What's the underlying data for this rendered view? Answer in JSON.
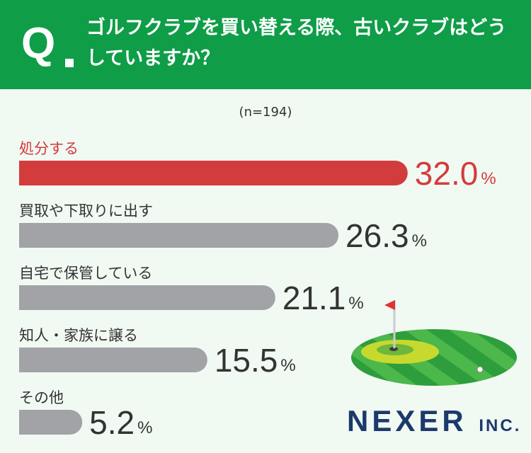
{
  "header": {
    "q_mark": "Q",
    "question": "ゴルフクラブを買い替える際、古いクラブはどうしていますか？"
  },
  "sample_label": "(n=194)",
  "chart_data": {
    "type": "bar",
    "orientation": "horizontal",
    "categories": [
      "処分する",
      "買取や下取りに出す",
      "自宅で保管している",
      "知人・家族に譲る",
      "その他"
    ],
    "values": [
      32.0,
      26.3,
      21.1,
      15.5,
      5.2
    ],
    "value_labels": [
      "32.0",
      "26.3",
      "21.1",
      "15.5",
      "5.2"
    ],
    "unit": "%",
    "highlight_index": 0,
    "colors": {
      "highlight": "#d33c3c",
      "default": "#a1a3a7",
      "highlight_text": "#d33c3c",
      "text": "#333333"
    },
    "grid": false,
    "legend": "none"
  },
  "logo": {
    "name": "NEXER",
    "suffix": "INC."
  }
}
